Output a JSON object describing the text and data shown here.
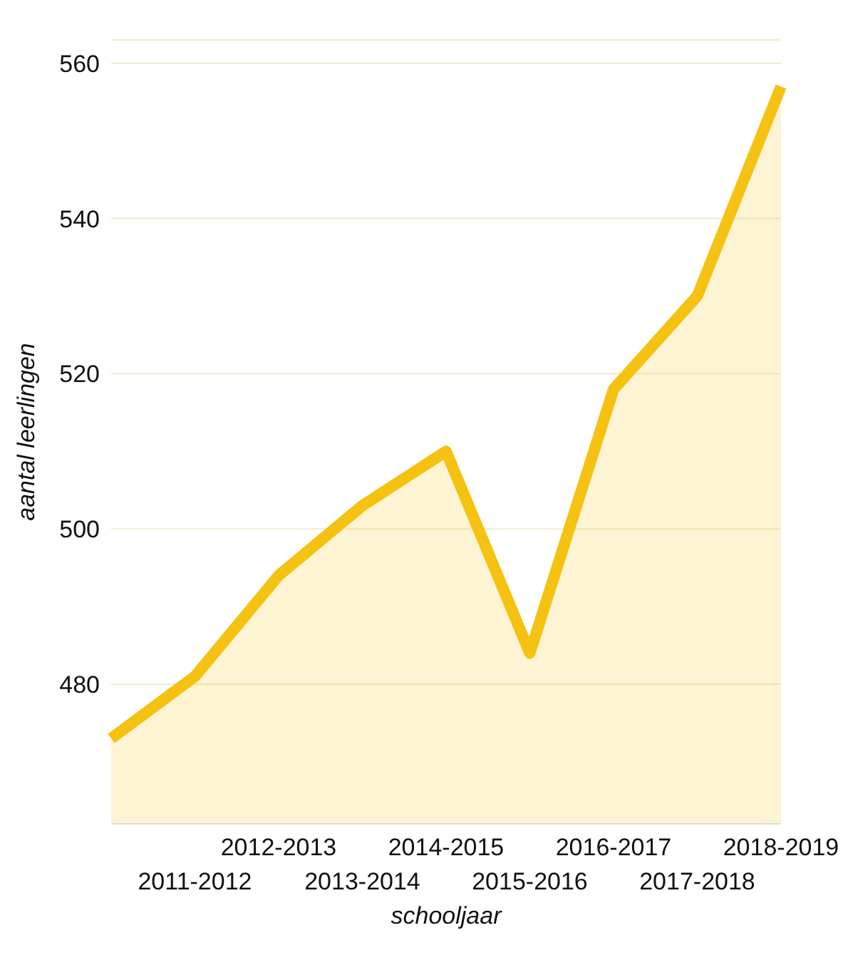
{
  "chart_data": {
    "type": "area",
    "xlabel": "schooljaar",
    "ylabel": "aantal leerlingen",
    "categories": [
      null,
      "2011-2012",
      "2012-2013",
      "2013-2014",
      "2014-2015",
      "2015-2016",
      "2016-2017",
      "2017-2018",
      "2018-2019"
    ],
    "series": [
      {
        "color": "#f5c211",
        "values": [
          473,
          481,
          494,
          503,
          510,
          484,
          518,
          530,
          557
        ]
      }
    ],
    "ylim": [
      462,
      563
    ],
    "yticks": [
      480,
      500,
      520,
      540,
      560
    ],
    "grid": "y"
  }
}
